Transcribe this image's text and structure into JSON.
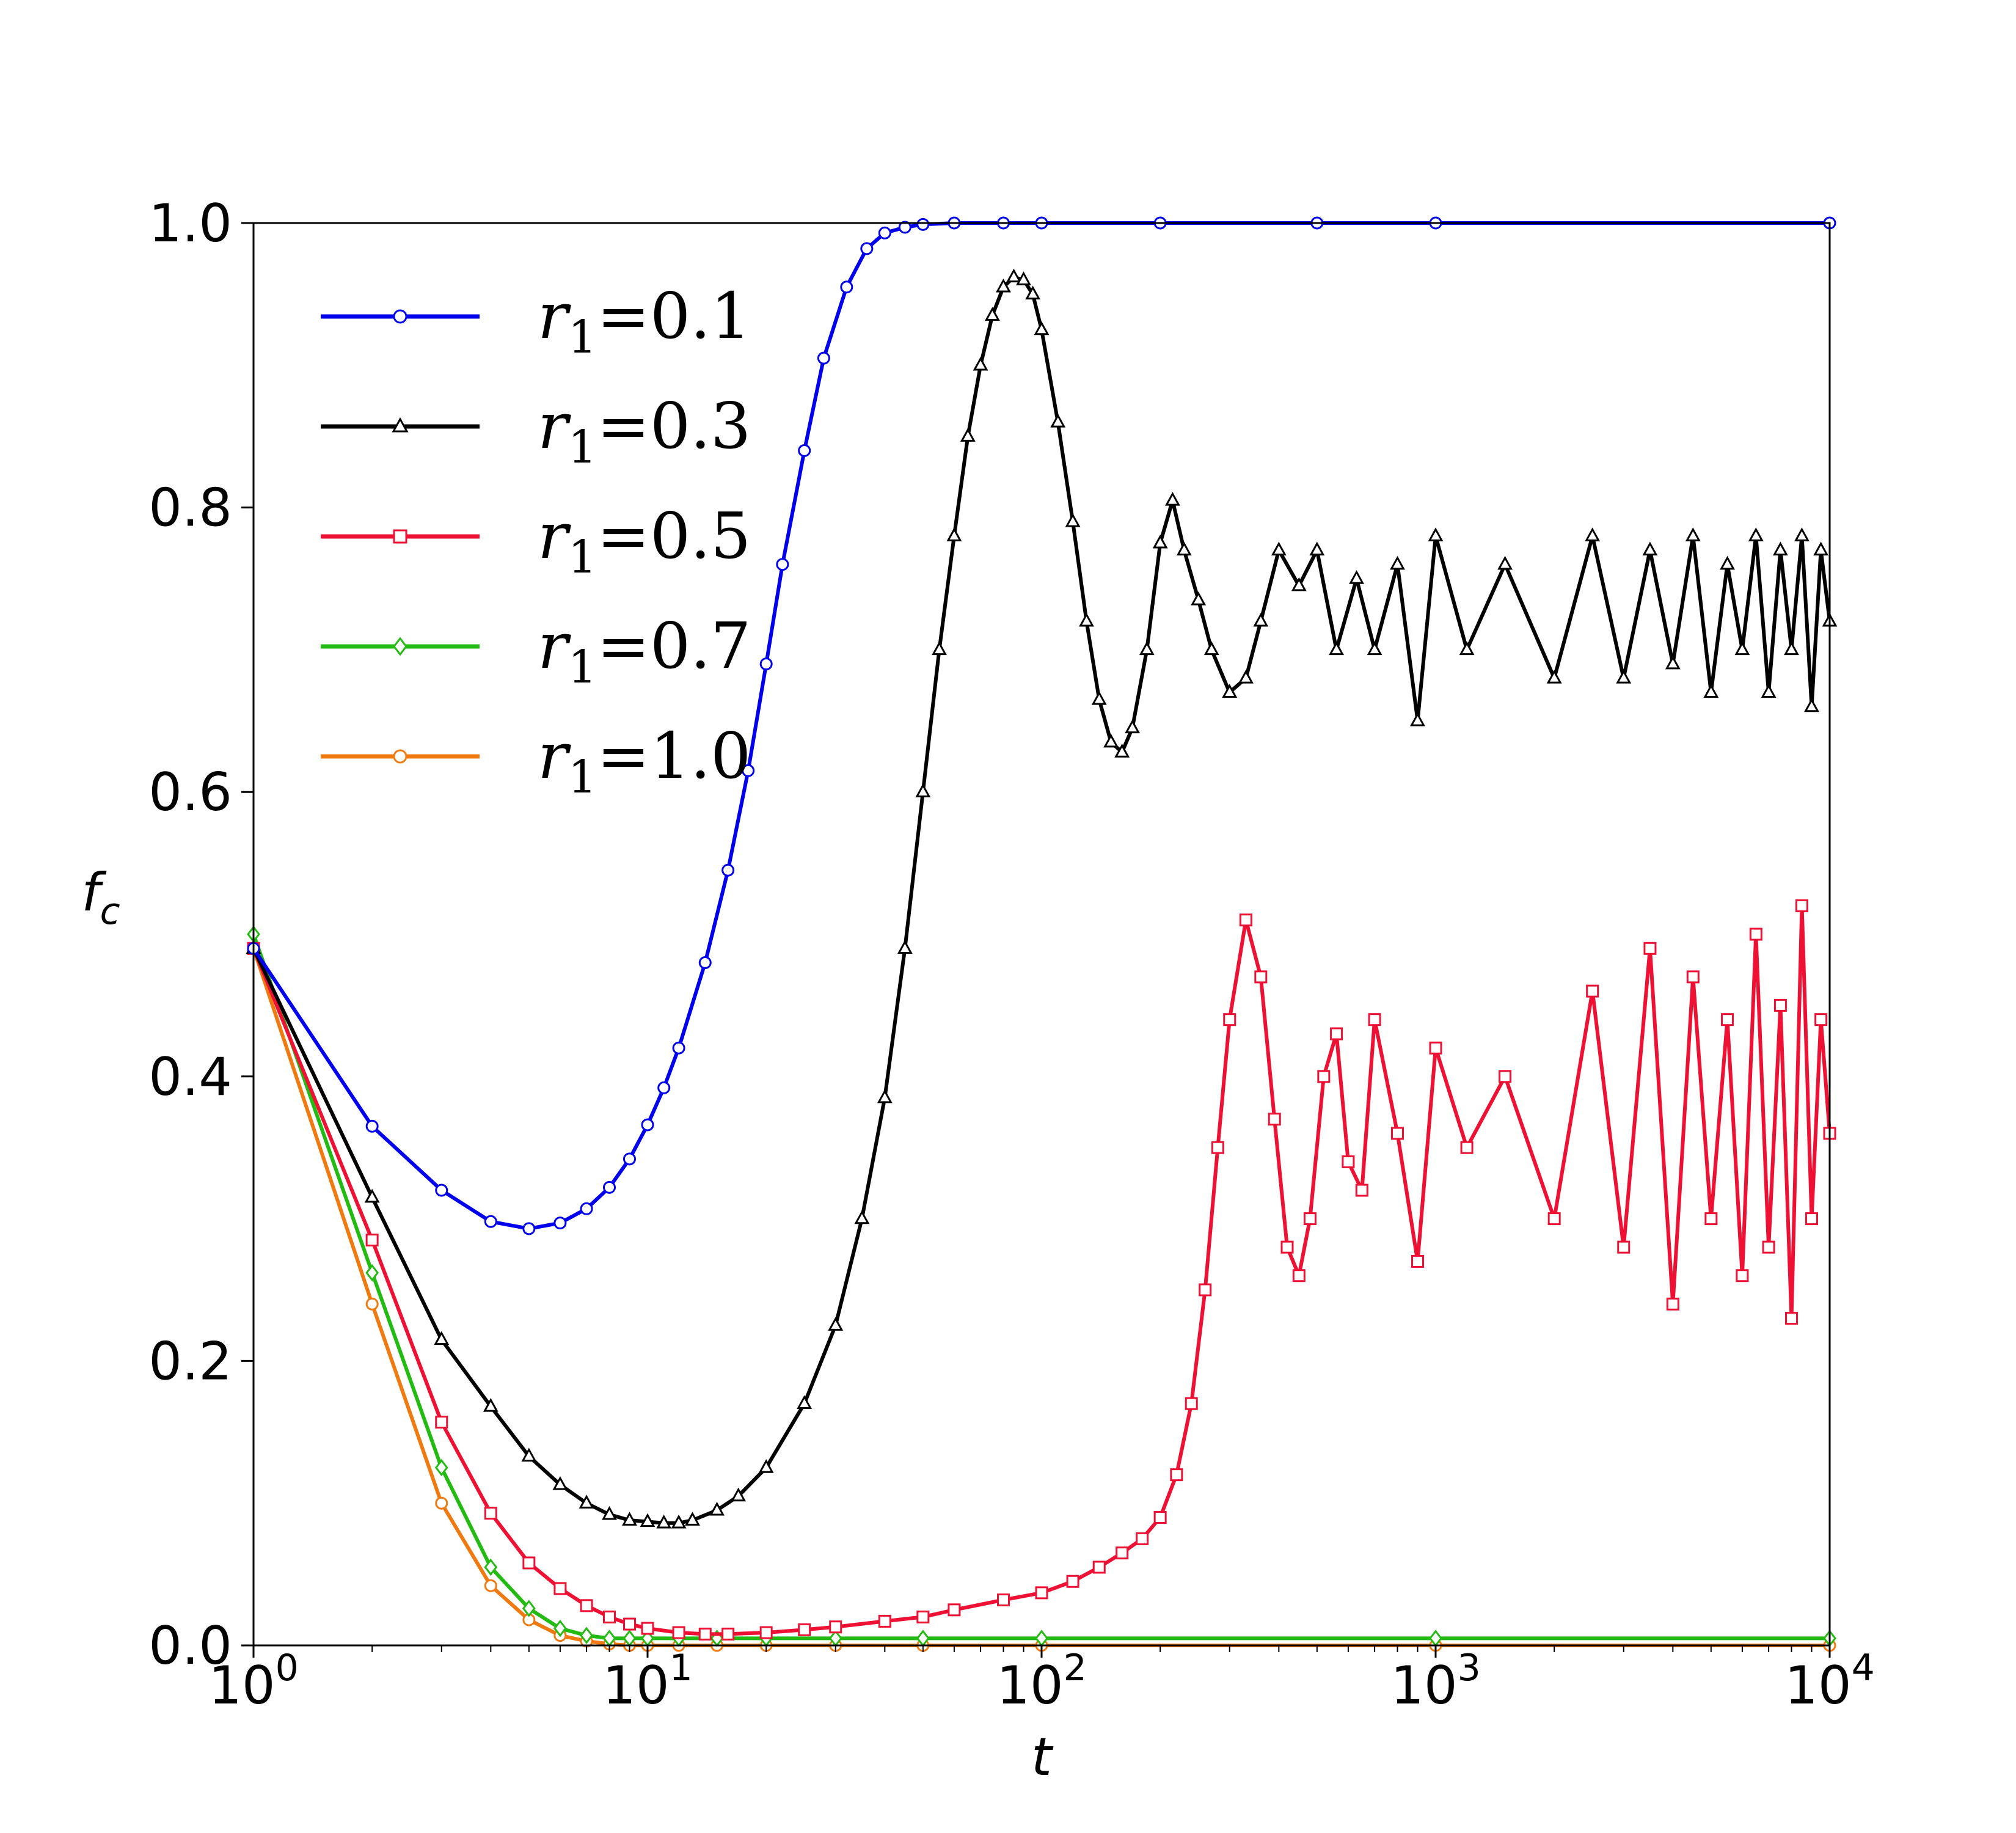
{
  "chart_data": {
    "type": "line",
    "xlabel": "t",
    "ylabel": "f",
    "ylabel_sub": "c",
    "x_scale": "log",
    "xlim": [
      1,
      10000
    ],
    "ylim": [
      0,
      1.0
    ],
    "grid": false,
    "legend_position": "top-left",
    "x_ticks": [
      {
        "value": 1,
        "base": "10",
        "exp": "0"
      },
      {
        "value": 10,
        "base": "10",
        "exp": "1"
      },
      {
        "value": 100,
        "base": "10",
        "exp": "2"
      },
      {
        "value": 1000,
        "base": "10",
        "exp": "3"
      },
      {
        "value": 10000,
        "base": "10",
        "exp": "4"
      }
    ],
    "y_ticks": [
      {
        "value": 0.0,
        "label": "0.0"
      },
      {
        "value": 0.2,
        "label": "0.2"
      },
      {
        "value": 0.4,
        "label": "0.4"
      },
      {
        "value": 0.6,
        "label": "0.6"
      },
      {
        "value": 0.8,
        "label": "0.8"
      },
      {
        "value": 1.0,
        "label": "1.0"
      }
    ],
    "series": [
      {
        "name": "r1=0.1",
        "label_var": "r",
        "label_sub": "1",
        "label_val": "=0.1",
        "color": "#0000ee",
        "marker": "circle",
        "x": [
          1,
          2,
          3,
          4,
          5,
          6,
          7,
          8,
          9,
          10,
          11,
          12,
          14,
          16,
          18,
          20,
          22,
          25,
          28,
          32,
          36,
          40,
          45,
          50,
          60,
          80,
          100,
          200,
          500,
          1000,
          10000
        ],
        "y": [
          0.49,
          0.365,
          0.32,
          0.298,
          0.293,
          0.297,
          0.307,
          0.322,
          0.342,
          0.366,
          0.392,
          0.42,
          0.48,
          0.545,
          0.615,
          0.69,
          0.76,
          0.84,
          0.905,
          0.955,
          0.982,
          0.993,
          0.997,
          0.999,
          1.0,
          1.0,
          1.0,
          1.0,
          1.0,
          1.0,
          1.0
        ]
      },
      {
        "name": "r1=0.3",
        "label_var": "r",
        "label_sub": "1",
        "label_val": "=0.3",
        "color": "#000000",
        "marker": "triangle",
        "x": [
          1,
          2,
          3,
          4,
          5,
          6,
          7,
          8,
          9,
          10,
          11,
          12,
          13,
          15,
          17,
          20,
          25,
          30,
          35,
          40,
          45,
          50,
          55,
          60,
          65,
          70,
          75,
          80,
          85,
          90,
          95,
          100,
          110,
          120,
          130,
          140,
          150,
          160,
          170,
          185,
          200,
          215,
          230,
          250,
          270,
          300,
          330,
          360,
          400,
          450,
          500,
          560,
          630,
          700,
          800,
          900,
          1000,
          1200,
          1500,
          2000,
          2500,
          3000,
          3500,
          4000,
          4500,
          5000,
          5500,
          6000,
          6500,
          7000,
          7500,
          8000,
          8500,
          9000,
          9500,
          10000
        ],
        "y": [
          0.49,
          0.315,
          0.215,
          0.168,
          0.133,
          0.113,
          0.1,
          0.092,
          0.088,
          0.087,
          0.086,
          0.086,
          0.088,
          0.095,
          0.105,
          0.125,
          0.17,
          0.225,
          0.3,
          0.385,
          0.49,
          0.6,
          0.7,
          0.78,
          0.85,
          0.9,
          0.935,
          0.955,
          0.962,
          0.96,
          0.95,
          0.925,
          0.86,
          0.79,
          0.72,
          0.665,
          0.635,
          0.628,
          0.645,
          0.7,
          0.775,
          0.805,
          0.77,
          0.735,
          0.7,
          0.67,
          0.68,
          0.72,
          0.77,
          0.745,
          0.77,
          0.7,
          0.75,
          0.7,
          0.76,
          0.65,
          0.78,
          0.7,
          0.76,
          0.68,
          0.78,
          0.68,
          0.77,
          0.69,
          0.78,
          0.67,
          0.76,
          0.7,
          0.78,
          0.67,
          0.77,
          0.7,
          0.78,
          0.66,
          0.77,
          0.72
        ]
      },
      {
        "name": "r1=0.5",
        "label_var": "r",
        "label_sub": "1",
        "label_val": "=0.5",
        "color": "#ee1133",
        "marker": "square",
        "x": [
          1,
          2,
          3,
          4,
          5,
          6,
          7,
          8,
          9,
          10,
          12,
          14,
          16,
          20,
          25,
          30,
          40,
          50,
          60,
          80,
          100,
          120,
          140,
          160,
          180,
          200,
          220,
          240,
          260,
          280,
          300,
          330,
          360,
          390,
          420,
          450,
          480,
          520,
          560,
          600,
          650,
          700,
          800,
          900,
          1000,
          1200,
          1500,
          2000,
          2500,
          3000,
          3500,
          4000,
          4500,
          5000,
          5500,
          6000,
          6500,
          7000,
          7500,
          8000,
          8500,
          9000,
          9500,
          10000
        ],
        "y": [
          0.49,
          0.285,
          0.157,
          0.093,
          0.058,
          0.04,
          0.028,
          0.02,
          0.015,
          0.012,
          0.009,
          0.008,
          0.008,
          0.009,
          0.011,
          0.013,
          0.017,
          0.02,
          0.025,
          0.032,
          0.037,
          0.045,
          0.055,
          0.065,
          0.075,
          0.09,
          0.12,
          0.17,
          0.25,
          0.35,
          0.44,
          0.51,
          0.47,
          0.37,
          0.28,
          0.26,
          0.3,
          0.4,
          0.43,
          0.34,
          0.32,
          0.44,
          0.36,
          0.27,
          0.42,
          0.35,
          0.4,
          0.3,
          0.46,
          0.28,
          0.49,
          0.24,
          0.47,
          0.3,
          0.44,
          0.26,
          0.5,
          0.28,
          0.45,
          0.23,
          0.52,
          0.3,
          0.44,
          0.36
        ]
      },
      {
        "name": "r1=0.7",
        "label_var": "r",
        "label_sub": "1",
        "label_val": "=0.7",
        "color": "#22bb11",
        "marker": "diamond",
        "x": [
          1,
          2,
          3,
          4,
          5,
          6,
          7,
          8,
          9,
          10,
          12,
          15,
          20,
          30,
          50,
          100,
          1000,
          10000
        ],
        "y": [
          0.5,
          0.262,
          0.125,
          0.055,
          0.026,
          0.012,
          0.007,
          0.005,
          0.005,
          0.005,
          0.005,
          0.005,
          0.005,
          0.005,
          0.005,
          0.005,
          0.005,
          0.005
        ]
      },
      {
        "name": "r1=1.0",
        "label_var": "r",
        "label_sub": "1",
        "label_val": "=1.0",
        "color": "#f07a10",
        "marker": "circle",
        "x": [
          1,
          2,
          3,
          4,
          5,
          6,
          7,
          8,
          9,
          10,
          12,
          15,
          20,
          30,
          50,
          100,
          1000,
          10000
        ],
        "y": [
          0.49,
          0.24,
          0.1,
          0.042,
          0.018,
          0.007,
          0.003,
          0.001,
          0.0,
          0.0,
          0.0,
          0.0,
          0.0,
          0.0,
          0.0,
          0.0,
          0.0,
          0.0
        ]
      }
    ]
  }
}
